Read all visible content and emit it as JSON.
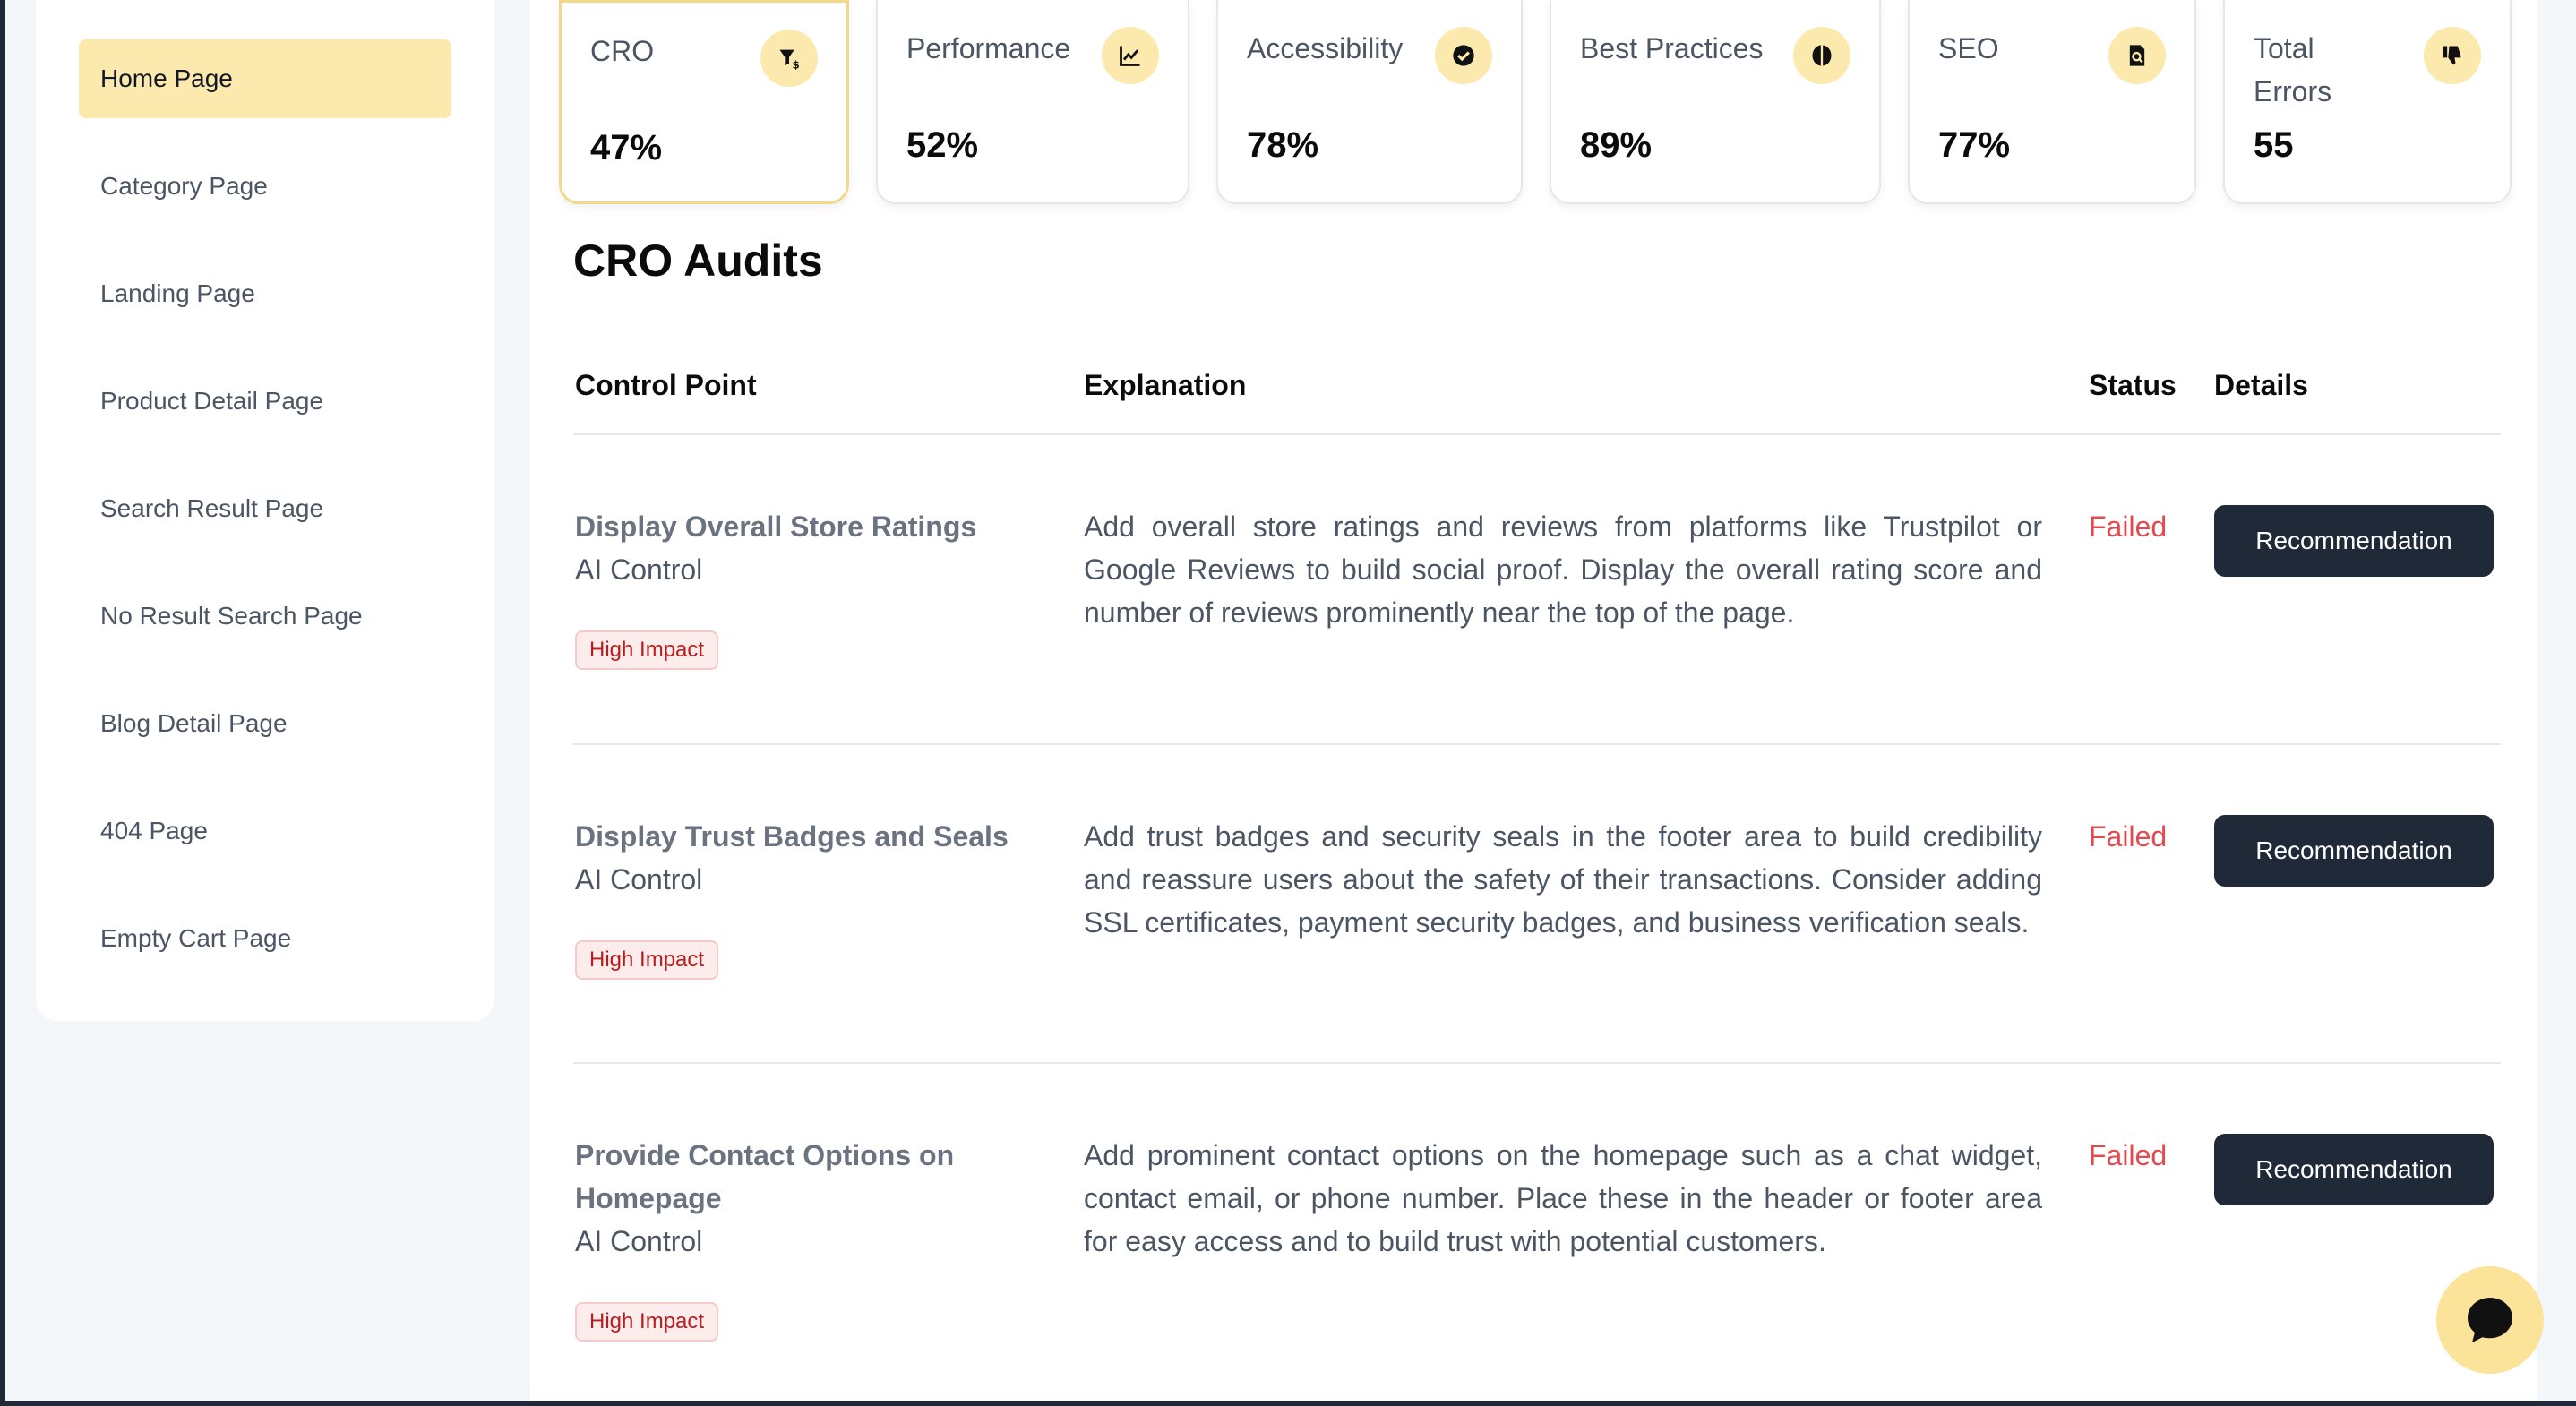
{
  "sidebar": {
    "items": [
      {
        "label": "Home Page",
        "active": true
      },
      {
        "label": "Category Page"
      },
      {
        "label": "Landing Page"
      },
      {
        "label": "Product Detail Page"
      },
      {
        "label": "Search Result Page"
      },
      {
        "label": "No Result Search Page"
      },
      {
        "label": "Blog Detail Page"
      },
      {
        "label": "404 Page"
      },
      {
        "label": "Empty Cart Page"
      }
    ]
  },
  "cards": [
    {
      "label": "CRO",
      "value": "47%",
      "icon": "funnel-dollar-icon"
    },
    {
      "label": "Performance",
      "value": "52%",
      "icon": "chart-line-icon"
    },
    {
      "label": "Accessibility",
      "value": "78%",
      "icon": "badge-check-icon"
    },
    {
      "label": "Best Practices",
      "value": "89%",
      "icon": "brain-icon"
    },
    {
      "label": "SEO",
      "value": "77%",
      "icon": "file-search-icon"
    },
    {
      "label": "Total Errors",
      "value": "55",
      "icon": "thumbs-down-icon"
    }
  ],
  "section_title": "CRO Audits",
  "table": {
    "headers": {
      "control_point": "Control Point",
      "explanation": "Explanation",
      "status": "Status",
      "details": "Details"
    },
    "rows": [
      {
        "title": "Display Overall Store Ratings",
        "subtitle": "AI Control",
        "badge": "High Impact",
        "explanation": "Add overall store ratings and reviews from platforms like Trustpilot or Google Reviews to build social proof. Display the overall rating score and number of reviews prominently near the top of the page.",
        "status": "Failed",
        "button": "Recommendation"
      },
      {
        "title": "Display Trust Badges and Seals",
        "subtitle": "AI Control",
        "badge": "High Impact",
        "explanation": "Add trust badges and security seals in the footer area to build credibility and reassure users about the safety of their transactions. Consider adding SSL certificates, payment security badges, and business verification seals.",
        "status": "Failed",
        "button": "Recommendation"
      },
      {
        "title": "Provide Contact Options on Homepage",
        "subtitle": "AI Control",
        "badge": "High Impact",
        "explanation": "Add prominent contact options on the homepage such as a chat widget, contact email, or phone number. Place these in the header or footer area for easy access and to build trust with potential customers.",
        "status": "Failed",
        "button": "Recommendation"
      }
    ]
  },
  "colors": {
    "accent": "#fbe9ad",
    "failed": "#e5484d",
    "button": "#1f2937"
  },
  "chat_icon": "chat-bubble-icon"
}
